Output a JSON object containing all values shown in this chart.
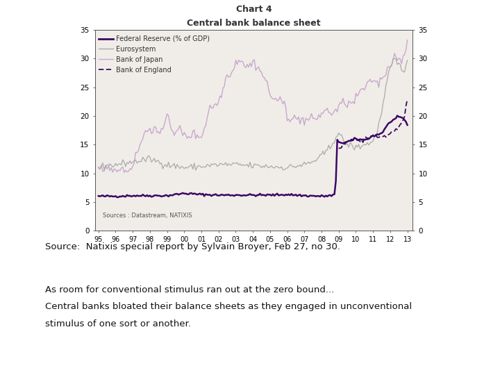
{
  "title_line1": "Chart 4",
  "title_line2": "Central bank balance sheet",
  "source_text": "Sources : Datastream, NATIXIS",
  "caption_line1": "Source:  Natixis special report by Sylvain Broyer, Feb 27, no 30.",
  "caption_line2": "As room for conventional stimulus ran out at the zero bound...",
  "caption_line3": "Central banks bloated their balance sheets as they engaged in unconventional",
  "caption_line4": "stimulus of one sort or another.",
  "x_labels": [
    "95",
    "96",
    "97",
    "98",
    "99",
    "00",
    "01",
    "02",
    "03",
    "04",
    "05",
    "06",
    "07",
    "08",
    "09",
    "10",
    "11",
    "12",
    "13"
  ],
  "ylim": [
    0,
    35
  ],
  "yticks": [
    0,
    5,
    10,
    15,
    20,
    25,
    30,
    35
  ],
  "colors": {
    "federal_reserve": "#3b0764",
    "eurosystem": "#aaaaaa",
    "bank_of_japan": "#c8a8cc",
    "bank_of_england": "#3b0764"
  },
  "legend_labels": [
    "Federal Reserve (% of GDP)",
    "Eurosystem",
    "Bank of Japan",
    "Bank of England"
  ],
  "background_color": "#ffffff",
  "chart_bg": "#f0ede8"
}
